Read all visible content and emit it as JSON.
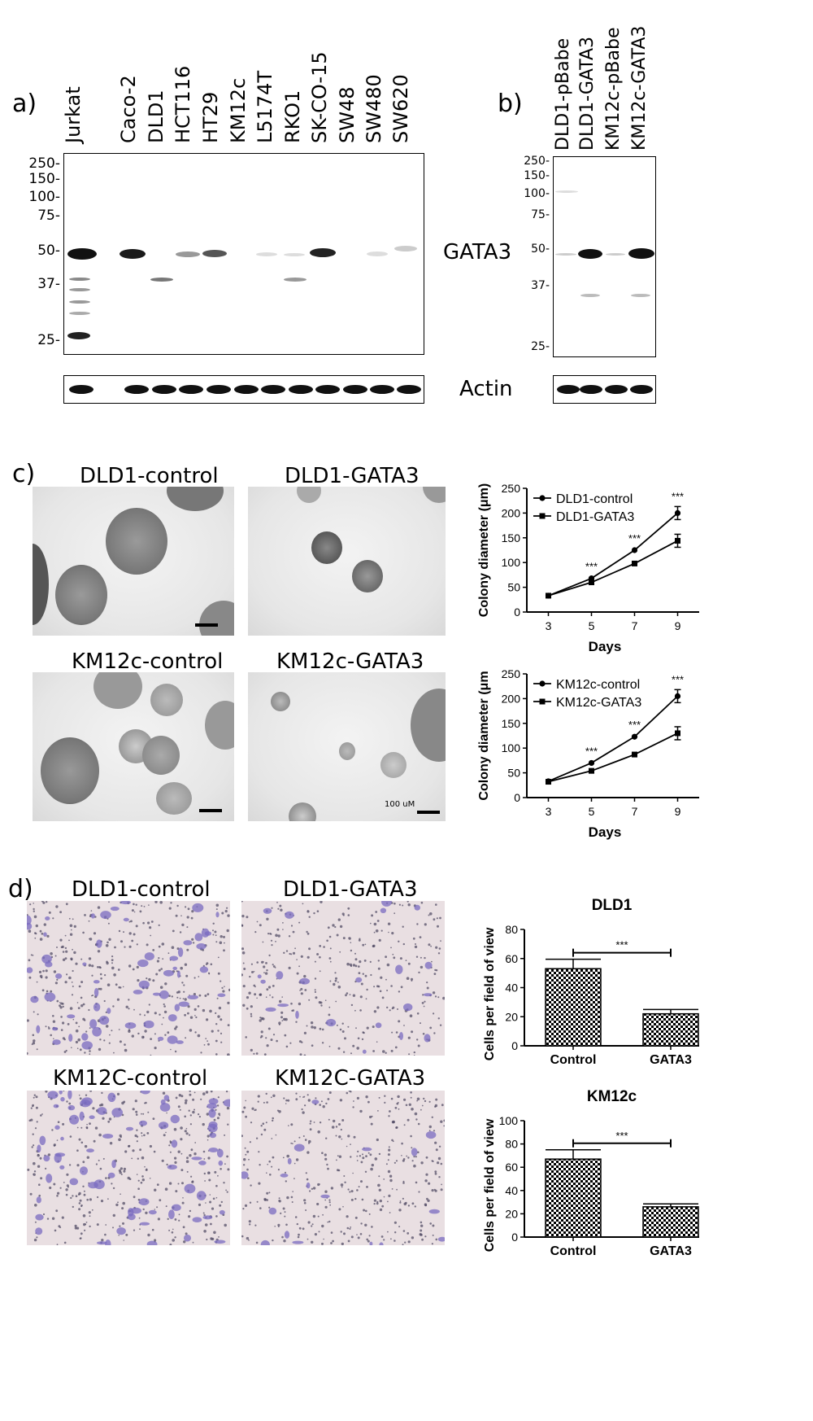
{
  "panel_a": {
    "letter": "a)",
    "lanes": [
      "Jurkat",
      "Caco-2",
      "DLD1",
      "HCT116",
      "HT29",
      "KM12c",
      "L5174T",
      "RKO1",
      "SK-CO-15",
      "SW48",
      "SW480",
      "SW620"
    ],
    "markers": [
      "250-",
      "150-",
      "100-",
      "75-",
      "50-",
      "37-",
      "25-"
    ],
    "protein_label": "GATA3",
    "loading_label": "Actin"
  },
  "panel_b": {
    "letter": "b)",
    "lanes": [
      "DLD1-pBabe",
      "DLD1-GATA3",
      "KM12c-pBabe",
      "KM12c-GATA3"
    ],
    "markers": [
      "250-",
      "150-",
      "100-",
      "75-",
      "50-",
      "37-",
      "25-"
    ]
  },
  "panel_c": {
    "letter": "c)",
    "images": [
      "DLD1-control",
      "DLD1-GATA3",
      "KM12c-control",
      "KM12c-GATA3"
    ],
    "scale_label": "100 uM"
  },
  "panel_d": {
    "letter": "d)",
    "images": [
      "DLD1-control",
      "DLD1-GATA3",
      "KM12C-control",
      "KM12C-GATA3"
    ]
  },
  "chart_data": [
    {
      "type": "line",
      "x": [
        3,
        5,
        7,
        9
      ],
      "xlabel": "Days",
      "ylabel": "Colony diameter (μm)",
      "ylim": [
        0,
        250
      ],
      "yticks": [
        0,
        50,
        100,
        150,
        200,
        250
      ],
      "legend": "top-left",
      "series": [
        {
          "name": "DLD1-control",
          "marker": "circle",
          "values": [
            33,
            68,
            125,
            200
          ]
        },
        {
          "name": "DLD1-GATA3",
          "marker": "square",
          "values": [
            33,
            60,
            98,
            144
          ]
        }
      ],
      "annotations": [
        "***",
        "***",
        "***"
      ]
    },
    {
      "type": "line",
      "x": [
        3,
        5,
        7,
        9
      ],
      "xlabel": "Days",
      "ylabel": "Colony diameter (μm",
      "ylim": [
        0,
        250
      ],
      "yticks": [
        0,
        50,
        100,
        150,
        200,
        250
      ],
      "legend": "top-left",
      "series": [
        {
          "name": "KM12c-control",
          "marker": "circle",
          "values": [
            33,
            70,
            123,
            205
          ]
        },
        {
          "name": "KM12c-GATA3",
          "marker": "square",
          "values": [
            32,
            54,
            87,
            130
          ]
        }
      ],
      "annotations": [
        "***",
        "***",
        "***"
      ]
    },
    {
      "type": "bar",
      "title": "DLD1",
      "categories": [
        "Control",
        "GATA3"
      ],
      "values": [
        53,
        22
      ],
      "errors": [
        6.5,
        3
      ],
      "ylabel": "Cells per field of view",
      "ylim": [
        0,
        80
      ],
      "yticks": [
        0,
        20,
        40,
        60,
        80
      ],
      "annotation": "***"
    },
    {
      "type": "bar",
      "title": "KM12c",
      "categories": [
        "Control",
        "GATA3"
      ],
      "values": [
        67,
        26
      ],
      "errors": [
        8,
        2.5
      ],
      "ylabel": "Cells per field of view",
      "ylim": [
        0,
        100
      ],
      "yticks": [
        0,
        20,
        40,
        60,
        80,
        100
      ],
      "annotation": "***"
    }
  ]
}
